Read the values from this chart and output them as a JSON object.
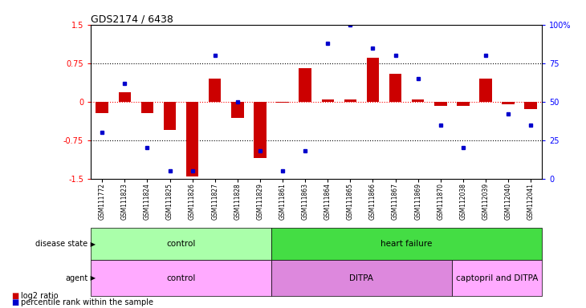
{
  "title": "GDS2174 / 6438",
  "samples": [
    "GSM111772",
    "GSM111823",
    "GSM111824",
    "GSM111825",
    "GSM111826",
    "GSM111827",
    "GSM111828",
    "GSM111829",
    "GSM111861",
    "GSM111863",
    "GSM111864",
    "GSM111865",
    "GSM111866",
    "GSM111867",
    "GSM111869",
    "GSM111870",
    "GSM112038",
    "GSM112039",
    "GSM112040",
    "GSM112041"
  ],
  "log2_ratio": [
    -0.22,
    0.18,
    -0.22,
    -0.55,
    -1.45,
    0.45,
    -0.32,
    -1.1,
    -0.02,
    0.65,
    0.05,
    0.05,
    0.85,
    0.55,
    0.05,
    -0.08,
    -0.08,
    0.45,
    -0.05,
    -0.15
  ],
  "percentile": [
    30,
    62,
    20,
    5,
    5,
    80,
    50,
    18,
    5,
    18,
    88,
    100,
    85,
    80,
    65,
    35,
    20,
    80,
    42,
    35
  ],
  "disease_state": [
    {
      "label": "control",
      "start": 0,
      "end": 8,
      "color": "#aaffaa"
    },
    {
      "label": "heart failure",
      "start": 8,
      "end": 20,
      "color": "#44dd44"
    }
  ],
  "agent": [
    {
      "label": "control",
      "start": 0,
      "end": 8,
      "color": "#ffaaff"
    },
    {
      "label": "DITPA",
      "start": 8,
      "end": 16,
      "color": "#dd88dd"
    },
    {
      "label": "captopril and DITPA",
      "start": 16,
      "end": 20,
      "color": "#ffaaff"
    }
  ],
  "bar_color": "#cc0000",
  "dot_color": "#0000cc",
  "ymin": -1.5,
  "ymax": 1.5,
  "yticks_left": [
    -1.5,
    -0.75,
    0,
    0.75,
    1.5
  ],
  "yticks_right": [
    0,
    25,
    50,
    75,
    100
  ],
  "hlines": [
    0.75,
    -0.75
  ],
  "legend_bar": "log2 ratio",
  "legend_dot": "percentile rank within the sample"
}
